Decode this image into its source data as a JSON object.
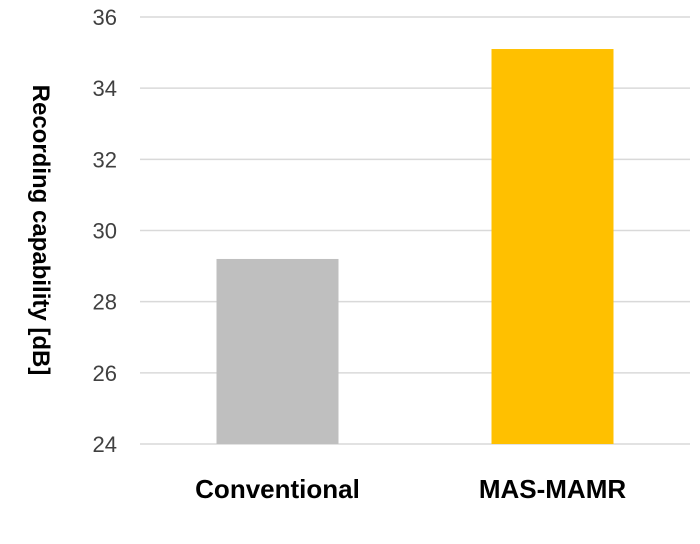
{
  "chart_data": {
    "type": "bar",
    "title": "",
    "xlabel": "",
    "ylabel": "Recording capability [dB]",
    "categories": [
      "Conventional",
      "MAS-MAMR"
    ],
    "values": [
      29.2,
      35.1
    ],
    "bar_colors": [
      "#bfbfbf",
      "#ffc000"
    ],
    "ylim": [
      24,
      36
    ],
    "yticks": [
      24,
      26,
      28,
      30,
      32,
      34,
      36
    ],
    "grid": true,
    "gridline_color": "#d9d9d9",
    "legend": "none"
  }
}
